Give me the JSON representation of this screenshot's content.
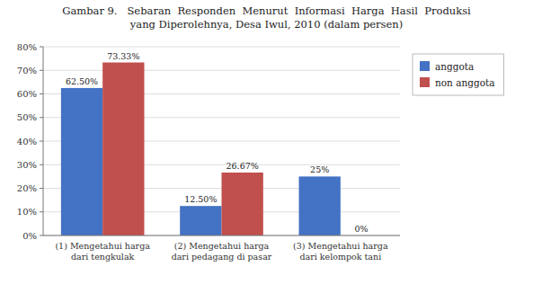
{
  "chart_data": {
    "type": "bar",
    "title": "Gambar 9.   Sebaran  Responden  Menurut  Informasi  Harga  Hasil  Produksi",
    "subtitle": "yang Diperolehnya, Desa Iwul, 2010 (dalam persen)",
    "categories": [
      "(1) Mengetahui harga\ndari tengkulak",
      "(2) Mengetahui harga\ndari pedagang di pasar",
      "(3) Mengetahui harga\ndari kelompok tani"
    ],
    "series": [
      {
        "name": "anggota",
        "color": "#4472C4",
        "values": [
          62.5,
          12.5,
          25.0
        ],
        "value_labels": [
          "62.50%",
          "12.50%",
          "25%"
        ]
      },
      {
        "name": "non anggota",
        "color": "#C0504D",
        "values": [
          73.33,
          26.67,
          0.0
        ],
        "value_labels": [
          "73.33%",
          "26.67%",
          "0%"
        ]
      }
    ],
    "ylim": [
      0,
      80
    ],
    "yticks": [
      {
        "value": 0,
        "label": "0%"
      },
      {
        "value": 10,
        "label": "10%"
      },
      {
        "value": 20,
        "label": "20%"
      },
      {
        "value": 30,
        "label": "30%"
      },
      {
        "value": 40,
        "label": "40%"
      },
      {
        "value": 50,
        "label": "50%"
      },
      {
        "value": 60,
        "label": "60%"
      },
      {
        "value": 70,
        "label": "70%"
      },
      {
        "value": 80,
        "label": "80%"
      }
    ],
    "grid": true,
    "legend": "right",
    "data_labels": true
  }
}
